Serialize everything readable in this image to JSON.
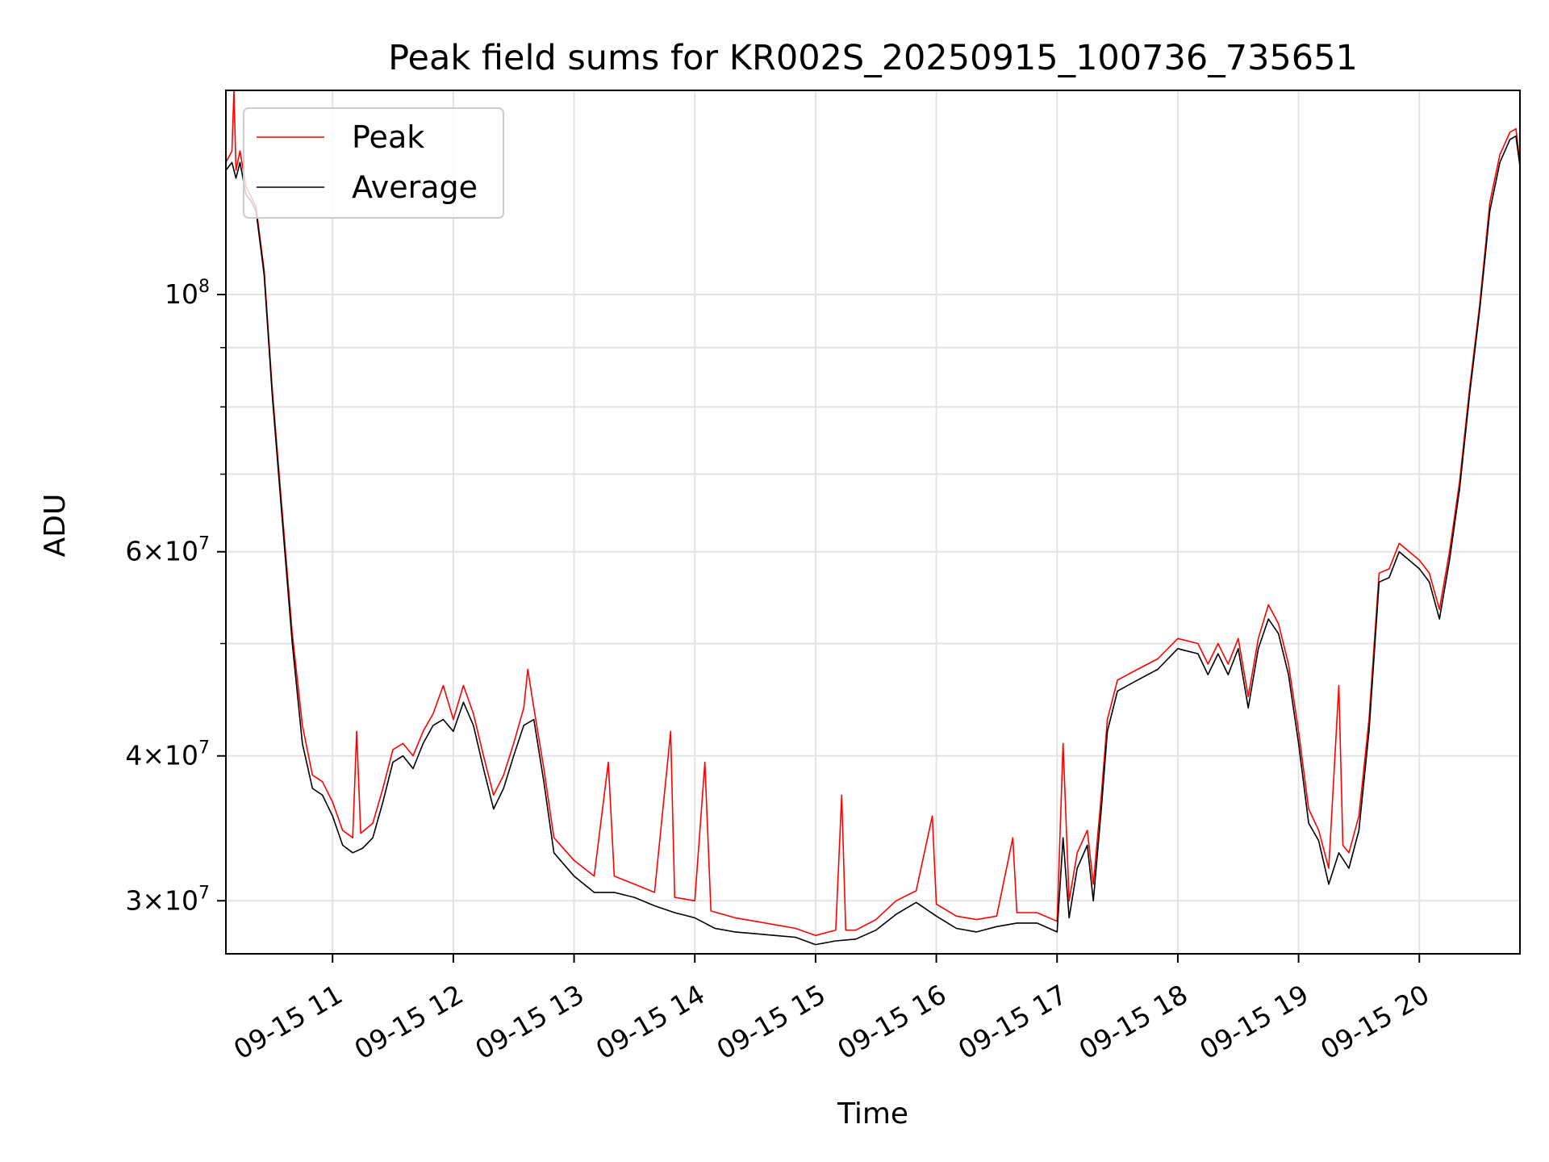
{
  "chart_data": {
    "type": "line",
    "title": "Peak field sums for KR002S_20250915_100736_735651",
    "xlabel": "Time",
    "ylabel": "ADU",
    "yscale": "log",
    "grid": true,
    "legend_position": "upper-left",
    "xlim": [
      "2025-09-15 10:07",
      "2025-09-15 20:50"
    ],
    "ylim": [
      27000000,
      150000000
    ],
    "x_ticks": [
      {
        "t": "2025-09-15 11:00",
        "label": "09-15 11"
      },
      {
        "t": "2025-09-15 12:00",
        "label": "09-15 12"
      },
      {
        "t": "2025-09-15 13:00",
        "label": "09-15 13"
      },
      {
        "t": "2025-09-15 14:00",
        "label": "09-15 14"
      },
      {
        "t": "2025-09-15 15:00",
        "label": "09-15 15"
      },
      {
        "t": "2025-09-15 16:00",
        "label": "09-15 16"
      },
      {
        "t": "2025-09-15 17:00",
        "label": "09-15 17"
      },
      {
        "t": "2025-09-15 18:00",
        "label": "09-15 18"
      },
      {
        "t": "2025-09-15 19:00",
        "label": "09-15 19"
      },
      {
        "t": "2025-09-15 20:00",
        "label": "09-15 20"
      }
    ],
    "y_ticks": [
      {
        "value": 30000000,
        "mantissa": "3",
        "exp": "7"
      },
      {
        "value": 40000000,
        "mantissa": "4",
        "exp": "7"
      },
      {
        "value": 60000000,
        "mantissa": "6",
        "exp": "7"
      },
      {
        "value": 100000000,
        "mantissa": "",
        "exp": "8"
      }
    ],
    "y_minor_ticks": [
      50000000,
      70000000,
      80000000,
      90000000
    ],
    "series": [
      {
        "name": "Average",
        "color": "#000000",
        "points": [
          [
            "2025-09-15 10:07",
            128000000
          ],
          [
            "2025-09-15 10:10",
            130000000
          ],
          [
            "2025-09-15 10:12",
            126000000
          ],
          [
            "2025-09-15 10:14",
            130000000
          ],
          [
            "2025-09-15 10:17",
            122000000
          ],
          [
            "2025-09-15 10:20",
            120000000
          ],
          [
            "2025-09-15 10:22",
            118000000
          ],
          [
            "2025-09-15 10:26",
            104000000
          ],
          [
            "2025-09-15 10:30",
            82000000
          ],
          [
            "2025-09-15 10:35",
            64000000
          ],
          [
            "2025-09-15 10:40",
            50000000
          ],
          [
            "2025-09-15 10:45",
            41000000
          ],
          [
            "2025-09-15 10:50",
            37500000
          ],
          [
            "2025-09-15 10:55",
            37000000
          ],
          [
            "2025-09-15 11:00",
            35500000
          ],
          [
            "2025-09-15 11:05",
            33500000
          ],
          [
            "2025-09-15 11:10",
            33000000
          ],
          [
            "2025-09-15 11:15",
            33300000
          ],
          [
            "2025-09-15 11:20",
            34000000
          ],
          [
            "2025-09-15 11:25",
            36500000
          ],
          [
            "2025-09-15 11:30",
            39500000
          ],
          [
            "2025-09-15 11:35",
            40000000
          ],
          [
            "2025-09-15 11:40",
            39000000
          ],
          [
            "2025-09-15 11:45",
            41000000
          ],
          [
            "2025-09-15 11:50",
            42500000
          ],
          [
            "2025-09-15 11:55",
            43000000
          ],
          [
            "2025-09-15 12:00",
            42000000
          ],
          [
            "2025-09-15 12:05",
            44500000
          ],
          [
            "2025-09-15 12:10",
            42500000
          ],
          [
            "2025-09-15 12:15",
            39000000
          ],
          [
            "2025-09-15 12:20",
            36000000
          ],
          [
            "2025-09-15 12:25",
            37500000
          ],
          [
            "2025-09-15 12:30",
            40000000
          ],
          [
            "2025-09-15 12:35",
            42500000
          ],
          [
            "2025-09-15 12:40",
            43000000
          ],
          [
            "2025-09-15 12:45",
            38000000
          ],
          [
            "2025-09-15 12:50",
            33000000
          ],
          [
            "2025-09-15 13:00",
            31500000
          ],
          [
            "2025-09-15 13:10",
            30500000
          ],
          [
            "2025-09-15 13:20",
            30500000
          ],
          [
            "2025-09-15 13:30",
            30200000
          ],
          [
            "2025-09-15 13:40",
            29700000
          ],
          [
            "2025-09-15 13:50",
            29300000
          ],
          [
            "2025-09-15 14:00",
            29000000
          ],
          [
            "2025-09-15 14:10",
            28400000
          ],
          [
            "2025-09-15 14:20",
            28200000
          ],
          [
            "2025-09-15 14:30",
            28100000
          ],
          [
            "2025-09-15 14:40",
            28000000
          ],
          [
            "2025-09-15 14:50",
            27900000
          ],
          [
            "2025-09-15 15:00",
            27500000
          ],
          [
            "2025-09-15 15:10",
            27700000
          ],
          [
            "2025-09-15 15:20",
            27800000
          ],
          [
            "2025-09-15 15:30",
            28300000
          ],
          [
            "2025-09-15 15:40",
            29200000
          ],
          [
            "2025-09-15 15:50",
            29900000
          ],
          [
            "2025-09-15 16:00",
            29100000
          ],
          [
            "2025-09-15 16:10",
            28400000
          ],
          [
            "2025-09-15 16:20",
            28200000
          ],
          [
            "2025-09-15 16:30",
            28500000
          ],
          [
            "2025-09-15 16:40",
            28700000
          ],
          [
            "2025-09-15 16:50",
            28700000
          ],
          [
            "2025-09-15 17:00",
            28200000
          ],
          [
            "2025-09-15 17:03",
            34000000
          ],
          [
            "2025-09-15 17:06",
            29000000
          ],
          [
            "2025-09-15 17:10",
            32000000
          ],
          [
            "2025-09-15 17:15",
            33500000
          ],
          [
            "2025-09-15 17:18",
            30000000
          ],
          [
            "2025-09-15 17:22",
            36000000
          ],
          [
            "2025-09-15 17:25",
            42000000
          ],
          [
            "2025-09-15 17:30",
            45500000
          ],
          [
            "2025-09-15 17:40",
            46500000
          ],
          [
            "2025-09-15 17:50",
            47500000
          ],
          [
            "2025-09-15 18:00",
            49500000
          ],
          [
            "2025-09-15 18:10",
            49000000
          ],
          [
            "2025-09-15 18:15",
            47000000
          ],
          [
            "2025-09-15 18:20",
            49000000
          ],
          [
            "2025-09-15 18:25",
            47000000
          ],
          [
            "2025-09-15 18:30",
            49500000
          ],
          [
            "2025-09-15 18:35",
            44000000
          ],
          [
            "2025-09-15 18:40",
            49500000
          ],
          [
            "2025-09-15 18:45",
            52500000
          ],
          [
            "2025-09-15 18:50",
            51000000
          ],
          [
            "2025-09-15 18:55",
            47000000
          ],
          [
            "2025-09-15 19:00",
            41000000
          ],
          [
            "2025-09-15 19:05",
            35000000
          ],
          [
            "2025-09-15 19:10",
            33800000
          ],
          [
            "2025-09-15 19:15",
            31000000
          ],
          [
            "2025-09-15 19:20",
            33000000
          ],
          [
            "2025-09-15 19:25",
            32000000
          ],
          [
            "2025-09-15 19:30",
            34500000
          ],
          [
            "2025-09-15 19:35",
            42000000
          ],
          [
            "2025-09-15 19:40",
            56500000
          ],
          [
            "2025-09-15 19:45",
            57000000
          ],
          [
            "2025-09-15 19:50",
            60000000
          ],
          [
            "2025-09-15 19:55",
            59000000
          ],
          [
            "2025-09-15 20:00",
            58000000
          ],
          [
            "2025-09-15 20:05",
            56500000
          ],
          [
            "2025-09-15 20:10",
            52500000
          ],
          [
            "2025-09-15 20:15",
            59000000
          ],
          [
            "2025-09-15 20:20",
            68000000
          ],
          [
            "2025-09-15 20:25",
            82000000
          ],
          [
            "2025-09-15 20:30",
            97000000
          ],
          [
            "2025-09-15 20:35",
            118000000
          ],
          [
            "2025-09-15 20:40",
            130000000
          ],
          [
            "2025-09-15 20:45",
            136000000
          ],
          [
            "2025-09-15 20:48",
            137000000
          ],
          [
            "2025-09-15 20:50",
            129000000
          ]
        ]
      },
      {
        "name": "Peak",
        "color": "#ff0000",
        "points": [
          [
            "2025-09-15 10:07",
            130000000
          ],
          [
            "2025-09-15 10:10",
            133000000
          ],
          [
            "2025-09-15 10:11",
            150000000
          ],
          [
            "2025-09-15 10:12",
            128000000
          ],
          [
            "2025-09-15 10:14",
            133000000
          ],
          [
            "2025-09-15 10:17",
            124000000
          ],
          [
            "2025-09-15 10:20",
            121000000
          ],
          [
            "2025-09-15 10:22",
            119000000
          ],
          [
            "2025-09-15 10:26",
            105000000
          ],
          [
            "2025-09-15 10:30",
            83000000
          ],
          [
            "2025-09-15 10:35",
            65000000
          ],
          [
            "2025-09-15 10:40",
            51000000
          ],
          [
            "2025-09-15 10:45",
            42500000
          ],
          [
            "2025-09-15 10:50",
            38500000
          ],
          [
            "2025-09-15 10:55",
            38000000
          ],
          [
            "2025-09-15 11:00",
            36500000
          ],
          [
            "2025-09-15 11:05",
            34500000
          ],
          [
            "2025-09-15 11:10",
            34000000
          ],
          [
            "2025-09-15 11:12",
            42000000
          ],
          [
            "2025-09-15 11:14",
            34300000
          ],
          [
            "2025-09-15 11:20",
            35000000
          ],
          [
            "2025-09-15 11:25",
            37500000
          ],
          [
            "2025-09-15 11:30",
            40500000
          ],
          [
            "2025-09-15 11:35",
            41000000
          ],
          [
            "2025-09-15 11:40",
            40000000
          ],
          [
            "2025-09-15 11:45",
            42000000
          ],
          [
            "2025-09-15 11:50",
            43500000
          ],
          [
            "2025-09-15 11:55",
            46000000
          ],
          [
            "2025-09-15 12:00",
            43000000
          ],
          [
            "2025-09-15 12:05",
            46000000
          ],
          [
            "2025-09-15 12:10",
            43500000
          ],
          [
            "2025-09-15 12:15",
            40000000
          ],
          [
            "2025-09-15 12:20",
            37000000
          ],
          [
            "2025-09-15 12:25",
            38500000
          ],
          [
            "2025-09-15 12:30",
            41000000
          ],
          [
            "2025-09-15 12:35",
            44000000
          ],
          [
            "2025-09-15 12:37",
            47500000
          ],
          [
            "2025-09-15 12:40",
            44000000
          ],
          [
            "2025-09-15 12:45",
            39000000
          ],
          [
            "2025-09-15 12:50",
            34000000
          ],
          [
            "2025-09-15 13:00",
            32500000
          ],
          [
            "2025-09-15 13:10",
            31500000
          ],
          [
            "2025-09-15 13:17",
            39500000
          ],
          [
            "2025-09-15 13:20",
            31500000
          ],
          [
            "2025-09-15 13:30",
            31000000
          ],
          [
            "2025-09-15 13:40",
            30500000
          ],
          [
            "2025-09-15 13:48",
            42000000
          ],
          [
            "2025-09-15 13:50",
            30200000
          ],
          [
            "2025-09-15 14:00",
            30000000
          ],
          [
            "2025-09-15 14:05",
            39500000
          ],
          [
            "2025-09-15 14:08",
            29400000
          ],
          [
            "2025-09-15 14:20",
            29000000
          ],
          [
            "2025-09-15 14:30",
            28800000
          ],
          [
            "2025-09-15 14:40",
            28600000
          ],
          [
            "2025-09-15 14:50",
            28400000
          ],
          [
            "2025-09-15 15:00",
            28000000
          ],
          [
            "2025-09-15 15:10",
            28300000
          ],
          [
            "2025-09-15 15:13",
            37000000
          ],
          [
            "2025-09-15 15:15",
            28300000
          ],
          [
            "2025-09-15 15:20",
            28300000
          ],
          [
            "2025-09-15 15:30",
            28900000
          ],
          [
            "2025-09-15 15:40",
            30000000
          ],
          [
            "2025-09-15 15:50",
            30600000
          ],
          [
            "2025-09-15 15:58",
            35500000
          ],
          [
            "2025-09-15 16:00",
            29800000
          ],
          [
            "2025-09-15 16:10",
            29100000
          ],
          [
            "2025-09-15 16:20",
            28900000
          ],
          [
            "2025-09-15 16:30",
            29100000
          ],
          [
            "2025-09-15 16:38",
            34000000
          ],
          [
            "2025-09-15 16:40",
            29300000
          ],
          [
            "2025-09-15 16:50",
            29300000
          ],
          [
            "2025-09-15 17:00",
            28800000
          ],
          [
            "2025-09-15 17:03",
            41000000
          ],
          [
            "2025-09-15 17:06",
            30000000
          ],
          [
            "2025-09-15 17:10",
            33000000
          ],
          [
            "2025-09-15 17:15",
            34500000
          ],
          [
            "2025-09-15 17:18",
            31000000
          ],
          [
            "2025-09-15 17:22",
            37000000
          ],
          [
            "2025-09-15 17:25",
            43000000
          ],
          [
            "2025-09-15 17:30",
            46500000
          ],
          [
            "2025-09-15 17:40",
            47500000
          ],
          [
            "2025-09-15 17:50",
            48500000
          ],
          [
            "2025-09-15 18:00",
            50500000
          ],
          [
            "2025-09-15 18:10",
            50000000
          ],
          [
            "2025-09-15 18:15",
            48000000
          ],
          [
            "2025-09-15 18:20",
            50000000
          ],
          [
            "2025-09-15 18:25",
            48000000
          ],
          [
            "2025-09-15 18:30",
            50500000
          ],
          [
            "2025-09-15 18:35",
            45000000
          ],
          [
            "2025-09-15 18:40",
            50500000
          ],
          [
            "2025-09-15 18:45",
            54000000
          ],
          [
            "2025-09-15 18:50",
            52000000
          ],
          [
            "2025-09-15 18:55",
            48000000
          ],
          [
            "2025-09-15 19:00",
            42000000
          ],
          [
            "2025-09-15 19:05",
            36000000
          ],
          [
            "2025-09-15 19:10",
            34500000
          ],
          [
            "2025-09-15 19:15",
            32000000
          ],
          [
            "2025-09-15 19:20",
            46000000
          ],
          [
            "2025-09-15 19:22",
            33500000
          ],
          [
            "2025-09-15 19:25",
            33000000
          ],
          [
            "2025-09-15 19:30",
            35500000
          ],
          [
            "2025-09-15 19:35",
            43000000
          ],
          [
            "2025-09-15 19:40",
            57500000
          ],
          [
            "2025-09-15 19:45",
            58000000
          ],
          [
            "2025-09-15 19:50",
            61000000
          ],
          [
            "2025-09-15 19:55",
            60000000
          ],
          [
            "2025-09-15 20:00",
            59000000
          ],
          [
            "2025-09-15 20:05",
            57500000
          ],
          [
            "2025-09-15 20:10",
            53500000
          ],
          [
            "2025-09-15 20:15",
            60000000
          ],
          [
            "2025-09-15 20:20",
            69000000
          ],
          [
            "2025-09-15 20:25",
            83000000
          ],
          [
            "2025-09-15 20:30",
            98000000
          ],
          [
            "2025-09-15 20:35",
            120000000
          ],
          [
            "2025-09-15 20:40",
            132000000
          ],
          [
            "2025-09-15 20:45",
            138000000
          ],
          [
            "2025-09-15 20:48",
            139000000
          ],
          [
            "2025-09-15 20:50",
            130000000
          ]
        ]
      }
    ],
    "legend": [
      {
        "label": "Peak",
        "color": "#ff0000"
      },
      {
        "label": "Average",
        "color": "#000000"
      }
    ]
  }
}
